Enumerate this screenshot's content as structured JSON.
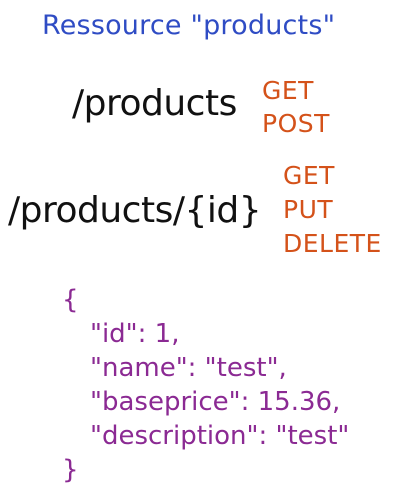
{
  "title": "Ressource \"products\"",
  "groups": [
    {
      "path": "/products",
      "methods": [
        "GET",
        "POST"
      ]
    },
    {
      "path": "/products/{id}",
      "methods": [
        "GET",
        "PUT",
        "DELETE"
      ]
    }
  ],
  "json_example": {
    "open": "{",
    "lines": [
      "\"id\": 1,",
      "\"name\": \"test\",",
      "\"baseprice\": 15.36,",
      "\"description\": \"test\""
    ],
    "close": "}"
  },
  "colors": {
    "title": "#2f4cc4",
    "path": "#111111",
    "method": "#d4521a",
    "json": "#8b2a93"
  }
}
